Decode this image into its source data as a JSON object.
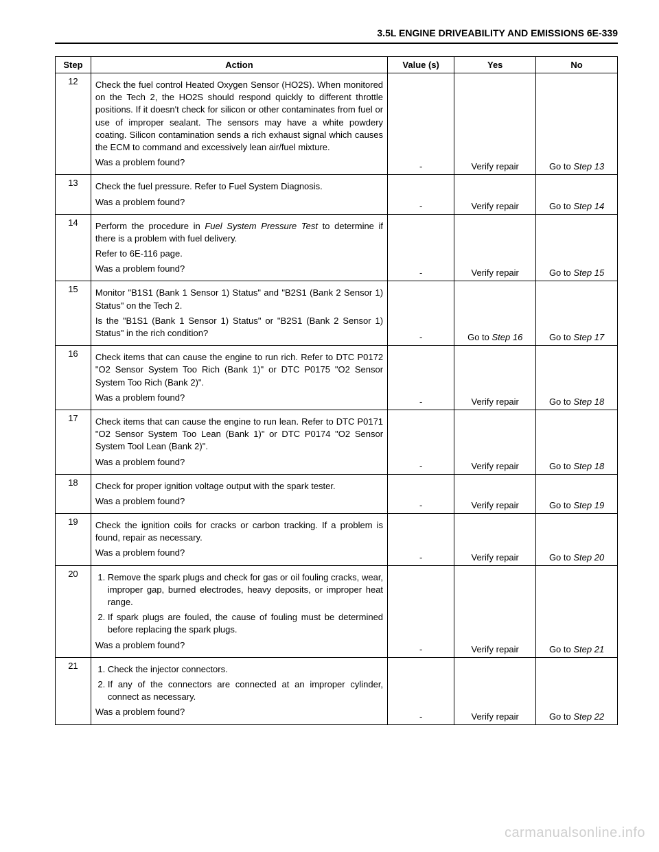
{
  "header": "3.5L ENGINE DRIVEABILITY AND EMISSIONS 6E-339",
  "columns": {
    "step": "Step",
    "action": "Action",
    "value": "Value (s)",
    "yes": "Yes",
    "no": "No"
  },
  "rows": [
    {
      "step": "12",
      "action_html": "<p>Check the fuel control Heated Oxygen Sensor (HO2S). When monitored on the Tech 2, the HO2S should respond quickly to different throttle positions. If it doesn't check for silicon or other contaminates from fuel or use of improper sealant. The sensors may have a white powdery coating. Silicon contamination sends a rich exhaust signal which causes the ECM to command and excessively lean air/fuel mixture.</p><p>Was a problem found?</p>",
      "value": "-",
      "yes": "Verify repair",
      "no_prefix": "Go to ",
      "no_italic": "Step 13"
    },
    {
      "step": "13",
      "action_html": "<p>Check the fuel pressure. Refer to Fuel System Diagnosis.</p><p>Was a problem found?</p>",
      "value": "-",
      "yes": "Verify repair",
      "no_prefix": "Go to ",
      "no_italic": "Step 14"
    },
    {
      "step": "14",
      "action_html": "<p>Perform the procedure in <span class=\"italic\">Fuel System Pressure Test</span> to determine if there is a problem with fuel delivery.</p><p>Refer to 6E-116 page.</p><p>Was a problem found?</p>",
      "value": "-",
      "yes": "Verify repair",
      "no_prefix": "Go to ",
      "no_italic": "Step 15"
    },
    {
      "step": "15",
      "action_html": "<p>Monitor \"B1S1 (Bank 1 Sensor 1) Status\" and \"B2S1 (Bank 2 Sensor 1) Status\" on the Tech 2.</p><p>Is the \"B1S1 (Bank 1 Sensor 1) Status\" or \"B2S1 (Bank 2 Sensor 1) Status\" in the rich condition?</p>",
      "value": "-",
      "yes_prefix": "Go to ",
      "yes_italic": "Step 16",
      "no_prefix": "Go to ",
      "no_italic": "Step 17"
    },
    {
      "step": "16",
      "action_html": "<p>Check items that can cause the engine to run rich. Refer to DTC P0172 \"O2 Sensor System Too Rich (Bank 1)\" or DTC P0175 \"O2 Sensor System Too Rich (Bank 2)\".</p><p>Was a problem found?</p>",
      "value": "-",
      "yes": "Verify repair",
      "no_prefix": "Go to ",
      "no_italic": "Step 18"
    },
    {
      "step": "17",
      "action_html": "<p>Check items that can cause the engine to run lean. Refer to DTC P0171 \"O2 Sensor System Too Lean (Bank 1)\" or DTC P0174 \"O2 Sensor System Tool Lean (Bank 2)\".</p><p>Was a problem found?</p>",
      "value": "-",
      "yes": "Verify repair",
      "no_prefix": "Go to ",
      "no_italic": "Step 18"
    },
    {
      "step": "18",
      "action_html": "<p>Check for proper ignition voltage output with the spark tester.</p><p>Was a problem found?</p>",
      "value": "-",
      "yes": "Verify repair",
      "no_prefix": "Go to ",
      "no_italic": "Step 19"
    },
    {
      "step": "19",
      "action_html": "<p>Check the ignition coils for cracks or carbon tracking. If a problem is found, repair as necessary.</p><p>Was a problem found?</p>",
      "value": "-",
      "yes": "Verify repair",
      "no_prefix": "Go to ",
      "no_italic": "Step 20"
    },
    {
      "step": "20",
      "action_html": "<ol><li>Remove the spark plugs and check for gas or oil fouling cracks, wear, improper gap, burned electrodes, heavy deposits, or improper heat range.</li><li>If spark plugs are fouled, the cause of fouling must be determined before replacing the spark plugs.</li></ol><p>Was a problem found?</p>",
      "value": "-",
      "yes": "Verify repair",
      "no_prefix": "Go to ",
      "no_italic": "Step 21"
    },
    {
      "step": "21",
      "action_html": "<ol><li>Check the injector connectors.</li><li>If any of the connectors are connected at an improper cylinder, connect as necessary.</li></ol><p>Was a problem found?</p>",
      "value": "-",
      "yes": "Verify repair",
      "no_prefix": "Go to ",
      "no_italic": "Step 22"
    }
  ],
  "watermark": "carmanualsonline.info"
}
